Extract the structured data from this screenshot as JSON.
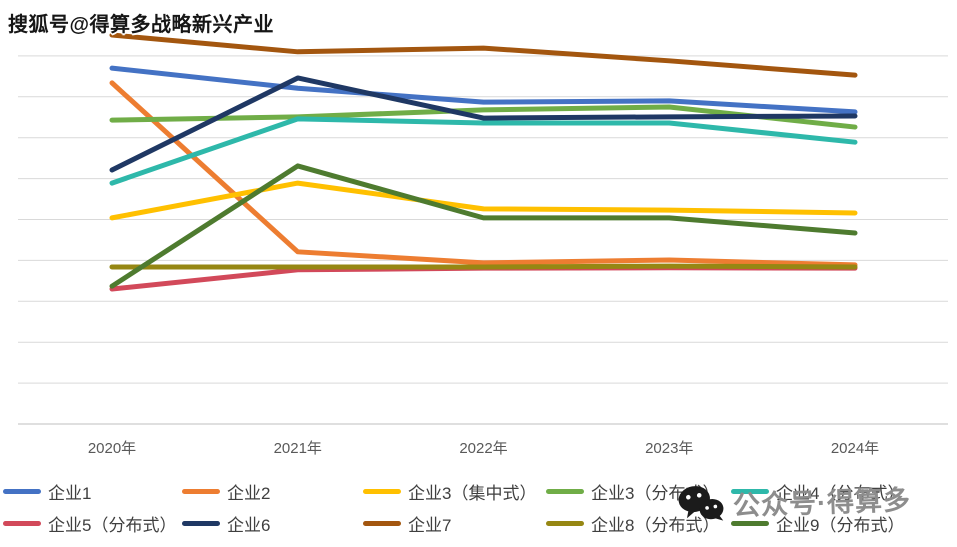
{
  "watermark_top": "搜狐号@得算多战略新兴产业",
  "overlay_bottom_right": {
    "icon": "wechat-icon",
    "text": "公众号·得算多"
  },
  "x_axis": {
    "labels": [
      "2020年",
      "2021年",
      "2022年",
      "2023年",
      "2024年"
    ]
  },
  "colors": {
    "gridline": "#d9d9d9",
    "axis_line": "#bfbfbf",
    "x_label_text": "#595959",
    "legend_text": "#3f3f3f",
    "watermark_gray": "#8d8d8d",
    "watermark_black": "#161616"
  },
  "chart_data": {
    "type": "line",
    "title": "",
    "xlabel": "",
    "ylabel": "",
    "categories": [
      "2020年",
      "2021年",
      "2022年",
      "2023年",
      "2024年"
    ],
    "y_axis_labels_visible": false,
    "value_unit": "relative gridline units (y-axis labels cropped out of image; bottom axis = 0, one gridline = 1)",
    "ylim": [
      0,
      10
    ],
    "gridlines": "horizontal only, 9 gridlines plus bottom axis",
    "legend_position": "bottom, two rows of five",
    "series": [
      {
        "name": "企业1",
        "color": "#4472c4",
        "values": [
          8.7,
          8.21,
          7.87,
          7.9,
          7.63
        ]
      },
      {
        "name": "企业2",
        "color": "#ed7d31",
        "values": [
          8.34,
          4.21,
          3.94,
          4.01,
          3.89
        ]
      },
      {
        "name": "企业3（集中式）",
        "color": "#ffc000",
        "values": [
          5.04,
          5.89,
          5.26,
          5.23,
          5.16
        ]
      },
      {
        "name": "企业3（分布式）",
        "color": "#70ad47",
        "values": [
          7.43,
          7.51,
          7.68,
          7.75,
          7.26
        ]
      },
      {
        "name": "企业4（分布式）",
        "color": "#2eb8aa",
        "values": [
          5.89,
          7.46,
          7.36,
          7.36,
          6.89
        ]
      },
      {
        "name": "企业5（分布式）",
        "color": "#d2495a",
        "values": [
          3.3,
          3.77,
          3.81,
          3.82,
          3.81
        ]
      },
      {
        "name": "企业6",
        "color": "#1f3864",
        "values": [
          6.21,
          8.46,
          7.48,
          7.51,
          7.53
        ]
      },
      {
        "name": "企业7",
        "color": "#a3560f",
        "values": [
          9.51,
          9.1,
          9.19,
          8.88,
          8.53
        ]
      },
      {
        "name": "企业8（分布式）",
        "color": "#968713",
        "values": [
          3.84,
          3.84,
          3.84,
          3.86,
          3.84
        ]
      },
      {
        "name": "企业9（分布式）",
        "color": "#4e7b2f",
        "values": [
          3.37,
          6.31,
          5.04,
          5.04,
          4.67
        ]
      }
    ]
  }
}
